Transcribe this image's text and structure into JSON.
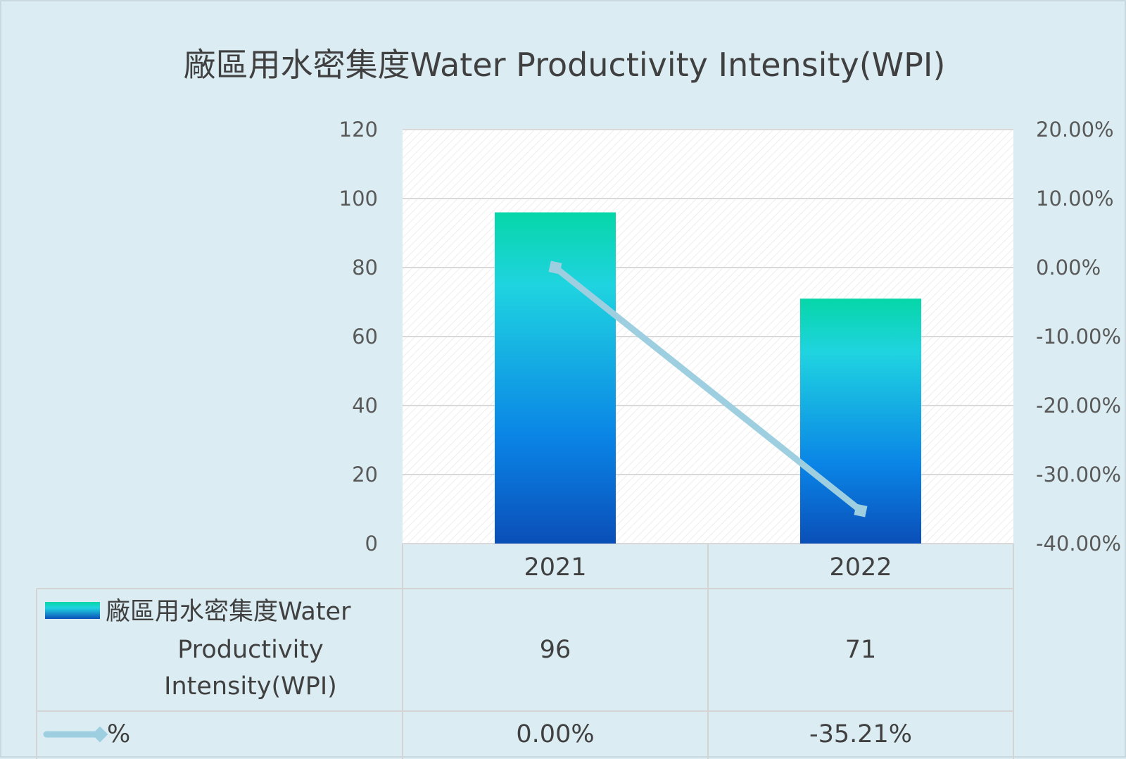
{
  "chart_data": {
    "type": "bar",
    "title": "廠區用水密集度Water Productivity Intensity(WPI)",
    "categories": [
      "2021",
      "2022"
    ],
    "series": [
      {
        "name": "廠區用水密集度Water Productivity Intensity(WPI)",
        "type": "bar",
        "axis": "left",
        "values": [
          96,
          71
        ],
        "value_labels": [
          "96",
          "71"
        ],
        "gradient": [
          "#06d6a8",
          "#1fd4e0",
          "#0a84e6",
          "#0a4fb8"
        ]
      },
      {
        "name": "%",
        "type": "line",
        "axis": "right",
        "values": [
          0.0,
          -35.21
        ],
        "value_labels": [
          "0.00%",
          "-35.21%"
        ],
        "color": "#9dcfe0"
      }
    ],
    "y_left": {
      "range": [
        0,
        120
      ],
      "ticks": [
        0,
        20,
        40,
        60,
        80,
        100,
        120
      ],
      "tick_labels": [
        "0",
        "20",
        "40",
        "60",
        "80",
        "100",
        "120"
      ]
    },
    "y_right": {
      "range": [
        -40,
        20
      ],
      "ticks": [
        -40,
        -30,
        -20,
        -10,
        0,
        10,
        20
      ],
      "tick_labels": [
        "-40.00%",
        "-30.00%",
        "-20.00%",
        "-10.00%",
        "0.00%",
        "10.00%",
        "20.00%"
      ]
    },
    "grid": true,
    "legend": "data table below chart",
    "colors": {
      "background": "#dbedf3",
      "plot_background": "#ffffff",
      "grid": "#d9d9d9",
      "table_border": "#d4d4d4"
    }
  }
}
